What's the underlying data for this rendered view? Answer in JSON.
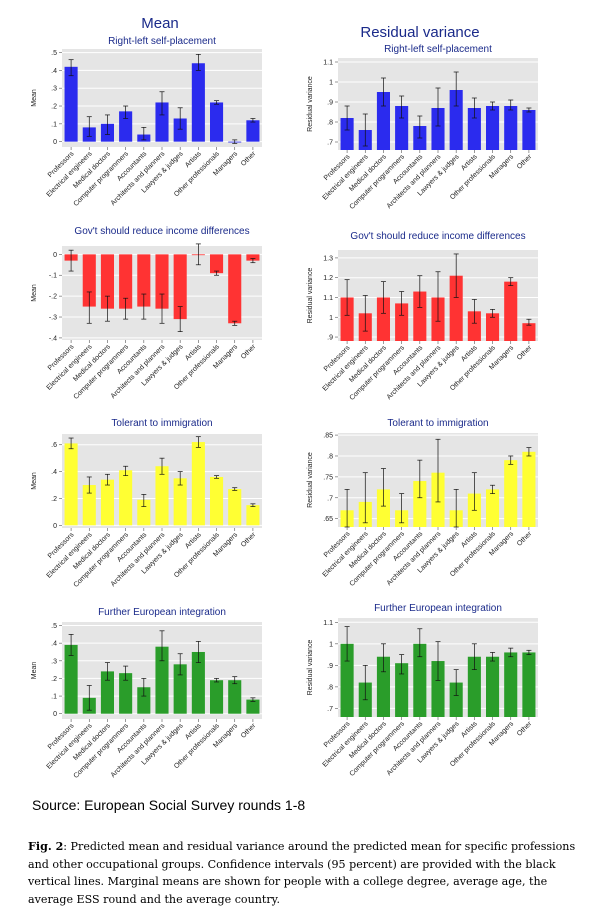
{
  "column_titles": {
    "left": "Mean",
    "right": "Residual variance"
  },
  "source": "Source: European Social Survey rounds 1-8",
  "caption": {
    "label": "Fig. 2",
    "text": ": Predicted mean and residual variance around the predicted mean for specific professions and other occupational groups. Confidence intervals (95 percent) are provided with the black vertical lines. Marginal means are shown for people with a college degree, average age, the average ESS round and the average country."
  },
  "chart_data": [
    {
      "id": "rl-mean",
      "type": "bar",
      "title": "Right-left self-placement",
      "ylabel": "Mean",
      "color": "#2b2bee",
      "categories": [
        "Professors",
        "Electrical engineers",
        "Medical doctors",
        "Computer programmers",
        "Accountants",
        "Architects and planners",
        "Lawyers & judges",
        "Artists",
        "Other professionals",
        "Managers",
        "Other"
      ],
      "values": [
        0.42,
        0.08,
        0.1,
        0.17,
        0.04,
        0.22,
        0.13,
        0.44,
        0.22,
        0.0,
        0.12
      ],
      "ci_low": [
        0.37,
        0.03,
        0.04,
        0.13,
        0.01,
        0.15,
        0.07,
        0.4,
        0.21,
        -0.01,
        0.11
      ],
      "ci_high": [
        0.46,
        0.14,
        0.15,
        0.2,
        0.08,
        0.28,
        0.19,
        0.49,
        0.23,
        0.01,
        0.13
      ],
      "ylim": [
        -0.03,
        0.52
      ],
      "ticks": [
        0,
        0.1,
        0.2,
        0.3,
        0.4,
        0.5
      ],
      "tick_labels": [
        "0",
        ".1",
        ".2",
        ".3",
        ".4",
        ".5"
      ]
    },
    {
      "id": "rl-var",
      "type": "bar",
      "title": "Right-left self-placement",
      "ylabel": "Residual variance",
      "color": "#2b2bee",
      "categories": [
        "Professors",
        "Electrical engineers",
        "Medical doctors",
        "Computer programmers",
        "Accountants",
        "Architects and planners",
        "Lawyers & judges",
        "Artists",
        "Other professionals",
        "Managers",
        "Other"
      ],
      "values": [
        0.82,
        0.76,
        0.95,
        0.88,
        0.78,
        0.87,
        0.96,
        0.87,
        0.88,
        0.88,
        0.86
      ],
      "ci_low": [
        0.76,
        0.68,
        0.88,
        0.82,
        0.72,
        0.78,
        0.88,
        0.82,
        0.86,
        0.86,
        0.85
      ],
      "ci_high": [
        0.88,
        0.84,
        1.02,
        0.93,
        0.83,
        0.97,
        1.05,
        0.92,
        0.9,
        0.91,
        0.87
      ],
      "ylim": [
        0.66,
        1.12
      ],
      "ticks": [
        0.7,
        0.8,
        0.9,
        1.0,
        1.1
      ],
      "tick_labels": [
        ".7",
        ".8",
        ".9",
        "1",
        "1.1"
      ]
    },
    {
      "id": "inc-mean",
      "type": "bar",
      "title": "Gov't should reduce income differences",
      "ylabel": "Mean",
      "color": "#ff3333",
      "categories": [
        "Professors",
        "Electrical engineers",
        "Medical doctors",
        "Computer programmers",
        "Accountants",
        "Architects and planners",
        "Lawyers & judges",
        "Artists",
        "Other professionals",
        "Managers",
        "Other"
      ],
      "values": [
        -0.03,
        -0.25,
        -0.26,
        -0.26,
        -0.25,
        -0.26,
        -0.31,
        0.0,
        -0.09,
        -0.33,
        -0.03
      ],
      "ci_low": [
        -0.08,
        -0.33,
        -0.32,
        -0.31,
        -0.31,
        -0.33,
        -0.37,
        -0.05,
        -0.1,
        -0.34,
        -0.04
      ],
      "ci_high": [
        0.02,
        -0.18,
        -0.2,
        -0.21,
        -0.19,
        -0.19,
        -0.25,
        0.05,
        -0.08,
        -0.32,
        -0.02
      ],
      "ylim": [
        -0.41,
        0.04
      ],
      "ticks": [
        0,
        -0.1,
        -0.2,
        -0.3,
        -0.4
      ],
      "tick_labels": [
        "0",
        "-.1",
        "-.2",
        "-.3",
        "-.4"
      ]
    },
    {
      "id": "inc-var",
      "type": "bar",
      "title": "Gov't should reduce income differences",
      "ylabel": "Residual variance",
      "color": "#ff3333",
      "categories": [
        "Professors",
        "Electrical engineers",
        "Medical doctors",
        "Computer programmers",
        "Accountants",
        "Architects and planners",
        "Lawyers & judges",
        "Artists",
        "Other professionals",
        "Managers",
        "Other"
      ],
      "values": [
        1.1,
        1.02,
        1.1,
        1.07,
        1.13,
        1.1,
        1.21,
        1.03,
        1.02,
        1.18,
        0.97
      ],
      "ci_low": [
        1.01,
        0.93,
        1.02,
        1.01,
        1.05,
        0.98,
        1.1,
        0.97,
        1.0,
        1.16,
        0.96
      ],
      "ci_high": [
        1.19,
        1.11,
        1.18,
        1.13,
        1.21,
        1.23,
        1.32,
        1.09,
        1.04,
        1.2,
        0.99
      ],
      "ylim": [
        0.88,
        1.34
      ],
      "ticks": [
        0.9,
        1.0,
        1.1,
        1.2,
        1.3
      ],
      "tick_labels": [
        ".9",
        "1",
        "1.1",
        "1.2",
        "1.3"
      ]
    },
    {
      "id": "imm-mean",
      "type": "bar",
      "title": "Tolerant to immigration",
      "ylabel": "Mean",
      "color": "#ffff33",
      "categories": [
        "Professors",
        "Electrical engineers",
        "Medical doctors",
        "Computer programmers",
        "Accountants",
        "Architects and planners",
        "Lawyers & judges",
        "Artists",
        "Other professionals",
        "Managers",
        "Other"
      ],
      "values": [
        0.61,
        0.3,
        0.34,
        0.41,
        0.19,
        0.44,
        0.35,
        0.62,
        0.36,
        0.27,
        0.15
      ],
      "ci_low": [
        0.57,
        0.24,
        0.3,
        0.37,
        0.14,
        0.38,
        0.3,
        0.58,
        0.35,
        0.26,
        0.14
      ],
      "ci_high": [
        0.65,
        0.36,
        0.38,
        0.44,
        0.23,
        0.5,
        0.4,
        0.66,
        0.37,
        0.28,
        0.16
      ],
      "ylim": [
        -0.02,
        0.68
      ],
      "ticks": [
        0,
        0.2,
        0.4,
        0.6
      ],
      "tick_labels": [
        "0",
        ".2",
        ".4",
        ".6"
      ]
    },
    {
      "id": "imm-var",
      "type": "bar",
      "title": "Tolerant to immigration",
      "ylabel": "Residual variance",
      "color": "#ffff33",
      "categories": [
        "Professors",
        "Electrical engineers",
        "Medical doctors",
        "Computer programmers",
        "Accountants",
        "Architects and planners",
        "Lawyers & judges",
        "Artists",
        "Other professionals",
        "Managers",
        "Other"
      ],
      "values": [
        0.67,
        0.69,
        0.72,
        0.67,
        0.74,
        0.76,
        0.67,
        0.71,
        0.72,
        0.79,
        0.81
      ],
      "ci_low": [
        0.63,
        0.64,
        0.68,
        0.64,
        0.7,
        0.69,
        0.63,
        0.67,
        0.71,
        0.78,
        0.8
      ],
      "ci_high": [
        0.72,
        0.76,
        0.77,
        0.71,
        0.79,
        0.84,
        0.72,
        0.76,
        0.73,
        0.8,
        0.82
      ],
      "ylim": [
        0.63,
        0.855
      ],
      "ticks": [
        0.65,
        0.7,
        0.75,
        0.8,
        0.85
      ],
      "tick_labels": [
        ".65",
        ".7",
        ".75",
        ".8",
        ".85"
      ]
    },
    {
      "id": "eu-mean",
      "type": "bar",
      "title": "Further European integration",
      "ylabel": "Mean",
      "color": "#2a9d2a",
      "categories": [
        "Professors",
        "Electrical engineers",
        "Medical doctors",
        "Computer programmers",
        "Accountants",
        "Architects and planners",
        "Lawyers & judges",
        "Artists",
        "Other professionals",
        "Managers",
        "Other"
      ],
      "values": [
        0.39,
        0.09,
        0.24,
        0.23,
        0.15,
        0.38,
        0.28,
        0.35,
        0.19,
        0.19,
        0.08
      ],
      "ci_low": [
        0.33,
        0.02,
        0.19,
        0.19,
        0.1,
        0.3,
        0.22,
        0.29,
        0.18,
        0.17,
        0.07
      ],
      "ci_high": [
        0.45,
        0.16,
        0.29,
        0.27,
        0.2,
        0.47,
        0.34,
        0.41,
        0.2,
        0.21,
        0.09
      ],
      "ylim": [
        -0.03,
        0.52
      ],
      "ticks": [
        0,
        0.1,
        0.2,
        0.3,
        0.4,
        0.5
      ],
      "tick_labels": [
        "0",
        ".1",
        ".2",
        ".3",
        ".4",
        ".5"
      ]
    },
    {
      "id": "eu-var",
      "type": "bar",
      "title": "Further European integration",
      "ylabel": "Residual variance",
      "color": "#2a9d2a",
      "categories": [
        "Professors",
        "Electrical engineers",
        "Medical doctors",
        "Computer programmers",
        "Accountants",
        "Architects and planners",
        "Lawyers & judges",
        "Artists",
        "Other professionals",
        "Managers",
        "Other"
      ],
      "values": [
        1.0,
        0.82,
        0.94,
        0.91,
        1.0,
        0.92,
        0.82,
        0.94,
        0.94,
        0.96,
        0.96
      ],
      "ci_low": [
        0.92,
        0.74,
        0.87,
        0.86,
        0.94,
        0.83,
        0.76,
        0.88,
        0.92,
        0.94,
        0.95
      ],
      "ci_high": [
        1.08,
        0.9,
        1.0,
        0.95,
        1.07,
        1.01,
        0.88,
        1.0,
        0.96,
        0.98,
        0.97
      ],
      "ylim": [
        0.66,
        1.12
      ],
      "ticks": [
        0.7,
        0.8,
        0.9,
        1.0,
        1.1
      ],
      "tick_labels": [
        ".7",
        ".8",
        ".9",
        "1",
        "1.1"
      ]
    }
  ]
}
